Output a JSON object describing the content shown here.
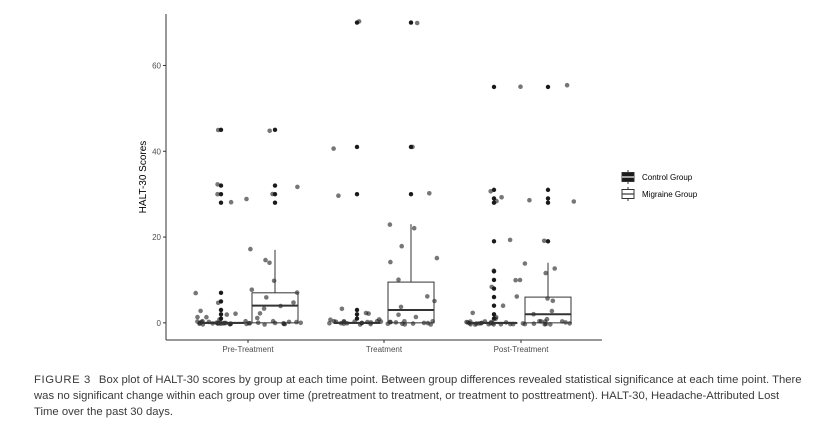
{
  "chart_data": {
    "type": "box",
    "categories": [
      "Pre-Treatment",
      "Treatment",
      "Post-Treatment"
    ],
    "ylabel": "HALT-30 Scores",
    "xlabel": "",
    "ylim": [
      -4,
      72
    ],
    "yticks": [
      0,
      20,
      40,
      60
    ],
    "grid": false,
    "legend_position": "right",
    "series": [
      {
        "name": "Control Group",
        "fill": "#1a1a1a",
        "boxes": [
          {
            "q1": 0,
            "median": 0,
            "q3": 0,
            "whisker_low": 0,
            "whisker_high": 0,
            "outliers": [
              1,
              2,
              3,
              5,
              7,
              28,
              30,
              32,
              45
            ]
          },
          {
            "q1": 0,
            "median": 0,
            "q3": 0,
            "whisker_low": 0,
            "whisker_high": 0,
            "outliers": [
              1,
              2,
              3,
              30,
              41,
              70
            ]
          },
          {
            "q1": 0,
            "median": 0,
            "q3": 0,
            "whisker_low": 0,
            "whisker_high": 0,
            "outliers": [
              1,
              2,
              4,
              6,
              8,
              10,
              12,
              19,
              28,
              29,
              31,
              55
            ]
          }
        ],
        "jitter": [
          [
            0,
            0,
            0,
            0,
            0,
            0,
            0,
            0,
            0,
            0,
            0,
            0,
            0,
            0,
            0,
            0,
            0,
            0,
            0,
            0,
            0,
            1,
            1,
            1,
            2,
            2,
            3,
            5,
            7,
            28,
            29,
            30,
            32,
            45
          ],
          [
            0,
            0,
            0,
            0,
            0,
            0,
            0,
            0,
            0,
            0,
            0,
            0,
            0,
            0,
            0,
            0,
            0,
            1,
            1,
            2,
            2,
            3,
            30,
            41,
            70
          ],
          [
            0,
            0,
            0,
            0,
            0,
            0,
            0,
            0,
            0,
            0,
            0,
            0,
            0,
            0,
            0,
            0,
            0,
            0,
            0,
            0,
            1,
            1,
            2,
            4,
            6,
            8,
            10,
            12,
            19,
            28,
            29,
            31,
            55
          ]
        ]
      },
      {
        "name": "Migraine Group",
        "fill": "#ffffff",
        "boxes": [
          {
            "q1": 0,
            "median": 4,
            "q3": 7,
            "whisker_low": 0,
            "whisker_high": 17,
            "outliers": [
              28,
              30,
              32,
              45
            ]
          },
          {
            "q1": 0,
            "median": 3,
            "q3": 9.5,
            "whisker_low": 0,
            "whisker_high": 23,
            "outliers": [
              30,
              41,
              70
            ]
          },
          {
            "q1": 0,
            "median": 2,
            "q3": 6,
            "whisker_low": 0,
            "whisker_high": 14,
            "outliers": [
              19,
              28,
              29,
              31,
              55
            ]
          }
        ],
        "jitter": [
          [
            0,
            0,
            0,
            0,
            0,
            0,
            0,
            0,
            0,
            0,
            0,
            0,
            1,
            2,
            3,
            4,
            5,
            6,
            7,
            8,
            10,
            14,
            15,
            17,
            30,
            32,
            45
          ],
          [
            0,
            0,
            0,
            0,
            0,
            0,
            0,
            0,
            0,
            0,
            0,
            0,
            1,
            2,
            4,
            5,
            6,
            10,
            14,
            15,
            18,
            22,
            23,
            30,
            41,
            70
          ],
          [
            0,
            0,
            0,
            0,
            0,
            0,
            0,
            0,
            0,
            0,
            0,
            0,
            1,
            2,
            3,
            5,
            6,
            10,
            12,
            13,
            14,
            19,
            28,
            29,
            55
          ]
        ]
      }
    ]
  },
  "caption": {
    "label": "FIGURE 3",
    "text": "Box plot of HALT-30 scores by group at each time point. Between group differences revealed statistical significance at each time point. There was no significant change within each group over time (pretreatment to treatment, or treatment to posttreatment). HALT-30, Headache-Attributed Lost Time over the past 30 days."
  }
}
